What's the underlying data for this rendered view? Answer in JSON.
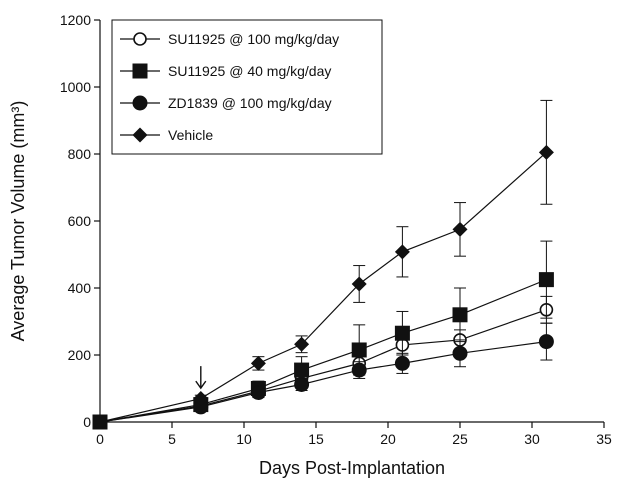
{
  "chart_data": {
    "type": "line",
    "xlabel": "Days Post-Implantation",
    "ylabel": "Average Tumor Volume (mm³)",
    "xlim": [
      0,
      35
    ],
    "ylim": [
      0,
      1200
    ],
    "xticks": [
      0,
      5,
      10,
      15,
      20,
      25,
      30,
      35
    ],
    "yticks": [
      0,
      200,
      400,
      600,
      800,
      1000,
      1200
    ],
    "grid": false,
    "legend_position": "top-left",
    "annotation": {
      "type": "arrow",
      "x": 7,
      "y": 125,
      "direction": "down"
    },
    "series": [
      {
        "name": "SU11925 @ 100 mg/kg/day",
        "marker": "circle-open",
        "x": [
          0,
          7,
          11,
          14,
          18,
          21,
          25,
          31
        ],
        "y": [
          0,
          48,
          92,
          130,
          175,
          230,
          245,
          335
        ],
        "err": [
          0,
          8,
          15,
          20,
          25,
          30,
          30,
          40
        ]
      },
      {
        "name": "SU11925 @ 40 mg/kg/day",
        "marker": "square",
        "x": [
          0,
          7,
          11,
          14,
          18,
          21,
          25,
          31
        ],
        "y": [
          0,
          52,
          100,
          155,
          215,
          265,
          320,
          425
        ],
        "err": [
          0,
          10,
          22,
          40,
          75,
          65,
          80,
          115
        ]
      },
      {
        "name": "ZD1839 @ 100 mg/kg/day",
        "marker": "circle",
        "x": [
          0,
          7,
          11,
          14,
          18,
          21,
          25,
          31
        ],
        "y": [
          0,
          45,
          88,
          112,
          155,
          175,
          205,
          240
        ],
        "err": [
          0,
          8,
          15,
          18,
          25,
          30,
          40,
          55
        ]
      },
      {
        "name": "Vehicle",
        "marker": "diamond",
        "x": [
          0,
          7,
          11,
          14,
          18,
          21,
          25,
          31
        ],
        "y": [
          0,
          70,
          175,
          232,
          412,
          508,
          575,
          805
        ],
        "err": [
          0,
          10,
          20,
          25,
          55,
          75,
          80,
          155
        ]
      }
    ]
  }
}
